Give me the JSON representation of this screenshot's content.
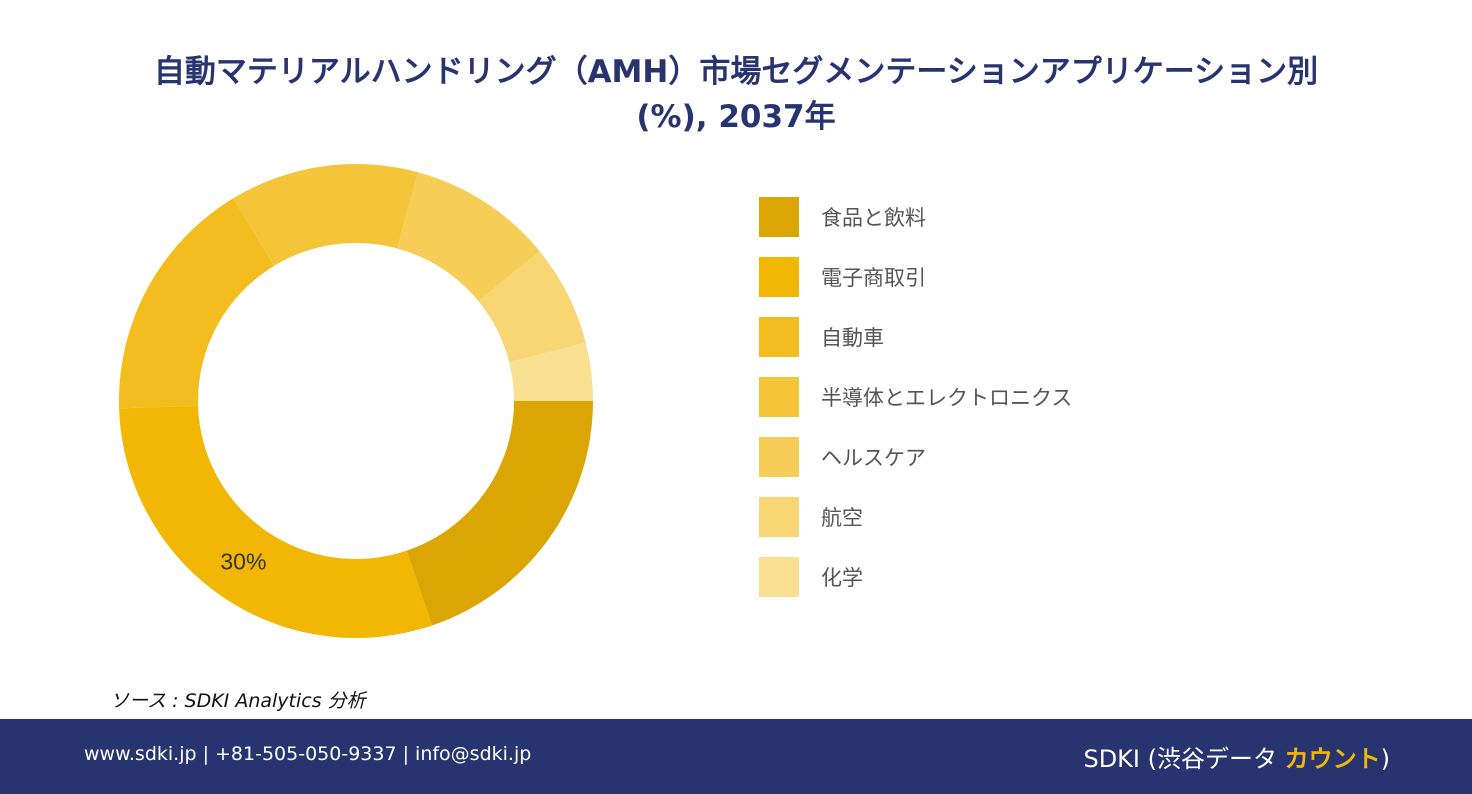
{
  "title": {
    "line1": "自動マテリアルハンドリング（AMH）市場セグメンテーションアプリケーション別",
    "line2": "(%), 2037年"
  },
  "chart_data": {
    "type": "pie",
    "hole": true,
    "categories": [
      "食品と飲料",
      "電子商取引",
      "自動車",
      "半導体とエレクトロニクス",
      "ヘルスケア",
      "航空",
      "化学"
    ],
    "values": [
      20,
      30,
      17,
      13,
      10,
      7,
      4
    ],
    "colors": [
      "#dba503",
      "#f2b705",
      "#f4bd1f",
      "#f5c539",
      "#f6cd56",
      "#f7d673",
      "#f9df91"
    ],
    "data_labels": [
      "",
      "30%",
      "",
      "",
      "",
      "",
      ""
    ],
    "legend_position": "right"
  },
  "source": "ソース : SDKI Analytics 分析",
  "footer": {
    "contact": "www.sdki.jp | +81-505-050-9337 | info@sdki.jp",
    "brand_prefix": "SDKI (渋谷データ ",
    "brand_accent": "カウント",
    "brand_suffix": ")"
  }
}
